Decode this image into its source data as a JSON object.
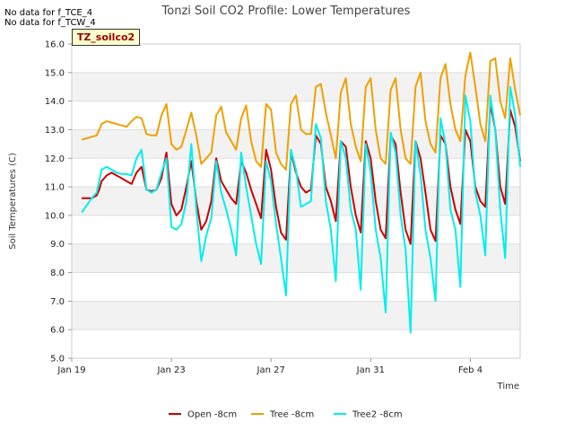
{
  "notes": [
    "No data for f_TCE_4",
    "No data for f_TCW_4"
  ],
  "badge": "TZ_soilco2",
  "chart_data": {
    "type": "line",
    "title": "Tonzi Soil CO2 Profile: Lower Temperatures",
    "xlabel": "Time",
    "ylabel": "Soil Temperatures (C)",
    "ylim": [
      5.0,
      16.0
    ],
    "yticks": [
      "5.0",
      "6.0",
      "7.0",
      "8.0",
      "9.0",
      "10.0",
      "11.0",
      "12.0",
      "13.0",
      "14.0",
      "15.0",
      "16.0"
    ],
    "xlim": [
      0,
      18
    ],
    "xticks": [
      {
        "x": 0,
        "label": "Jan 19"
      },
      {
        "x": 4,
        "label": "Jan 23"
      },
      {
        "x": 8,
        "label": "Jan 27"
      },
      {
        "x": 12,
        "label": "Jan 31"
      },
      {
        "x": 16,
        "label": "Feb 4"
      }
    ],
    "grid": true,
    "legend_position": "bottom",
    "series": [
      {
        "name": "Open -8cm",
        "color": "#cc0000",
        "x": [
          0.4,
          0.8,
          1.0,
          1.1,
          1.2,
          1.4,
          1.6,
          1.8,
          2.0,
          2.2,
          2.4,
          2.6,
          2.8,
          3.0,
          3.2,
          3.4,
          3.6,
          3.8,
          4.0,
          4.2,
          4.4,
          4.6,
          4.8,
          5.0,
          5.2,
          5.4,
          5.6,
          5.8,
          6.0,
          6.2,
          6.4,
          6.6,
          6.8,
          7.0,
          7.2,
          7.4,
          7.6,
          7.8,
          8.0,
          8.2,
          8.4,
          8.6,
          8.8,
          9.0,
          9.2,
          9.4,
          9.6,
          9.8,
          10.0,
          10.2,
          10.4,
          10.6,
          10.8,
          11.0,
          11.2,
          11.4,
          11.6,
          11.8,
          12.0,
          12.2,
          12.4,
          12.6,
          12.8,
          13.0,
          13.2,
          13.4,
          13.6,
          13.8,
          14.0,
          14.2,
          14.4,
          14.6,
          14.8,
          15.0,
          15.2,
          15.4,
          15.6,
          15.8,
          16.0,
          16.2,
          16.4,
          16.6,
          16.8,
          17.0,
          17.2,
          17.4,
          17.6,
          17.8,
          18.0
        ],
        "y": [
          10.6,
          10.6,
          10.7,
          10.9,
          11.2,
          11.4,
          11.5,
          11.4,
          11.3,
          11.2,
          11.1,
          11.5,
          11.7,
          10.9,
          10.85,
          10.9,
          11.3,
          12.2,
          10.4,
          10.0,
          10.2,
          11.0,
          11.9,
          10.5,
          9.5,
          9.8,
          10.5,
          12.0,
          11.2,
          10.9,
          10.6,
          10.4,
          11.9,
          11.5,
          10.9,
          10.4,
          9.9,
          12.3,
          11.6,
          10.3,
          9.4,
          9.15,
          12.2,
          11.5,
          11.0,
          10.8,
          10.9,
          12.8,
          12.5,
          11.0,
          10.5,
          9.8,
          12.6,
          12.4,
          11.0,
          10.0,
          9.4,
          12.6,
          12.0,
          10.5,
          9.5,
          9.2,
          12.8,
          12.5,
          10.8,
          9.5,
          9.0,
          12.6,
          12.0,
          10.8,
          9.5,
          9.1,
          12.8,
          12.5,
          11.0,
          10.2,
          9.7,
          13.0,
          12.6,
          11.0,
          10.5,
          10.3,
          13.9,
          13.0,
          11.0,
          10.4,
          13.7,
          13.1,
          11.9
        ]
      },
      {
        "name": "Tree -8cm",
        "color": "#f0a000",
        "x": [
          0.4,
          0.8,
          1.0,
          1.1,
          1.2,
          1.4,
          1.6,
          1.8,
          2.0,
          2.2,
          2.4,
          2.6,
          2.8,
          3.0,
          3.2,
          3.4,
          3.6,
          3.8,
          4.0,
          4.2,
          4.4,
          4.6,
          4.8,
          5.0,
          5.2,
          5.4,
          5.6,
          5.8,
          6.0,
          6.2,
          6.4,
          6.6,
          6.8,
          7.0,
          7.2,
          7.4,
          7.6,
          7.8,
          8.0,
          8.2,
          8.4,
          8.6,
          8.8,
          9.0,
          9.2,
          9.4,
          9.6,
          9.8,
          10.0,
          10.2,
          10.4,
          10.6,
          10.8,
          11.0,
          11.2,
          11.4,
          11.6,
          11.8,
          12.0,
          12.2,
          12.4,
          12.6,
          12.8,
          13.0,
          13.2,
          13.4,
          13.6,
          13.8,
          14.0,
          14.2,
          14.4,
          14.6,
          14.8,
          15.0,
          15.2,
          15.4,
          15.6,
          15.8,
          16.0,
          16.2,
          16.4,
          16.6,
          16.8,
          17.0,
          17.2,
          17.4,
          17.6,
          17.8,
          18.0
        ],
        "y": [
          12.65,
          12.75,
          12.8,
          13.0,
          13.2,
          13.3,
          13.25,
          13.2,
          13.15,
          13.1,
          13.3,
          13.45,
          13.4,
          12.85,
          12.8,
          12.8,
          13.5,
          13.9,
          12.5,
          12.3,
          12.4,
          13.0,
          13.6,
          12.8,
          11.8,
          12.0,
          12.2,
          13.5,
          13.8,
          12.9,
          12.6,
          12.3,
          13.4,
          13.85,
          12.6,
          11.9,
          11.7,
          13.9,
          13.7,
          12.2,
          11.8,
          11.6,
          13.9,
          14.2,
          13.0,
          12.85,
          12.85,
          14.5,
          14.6,
          13.6,
          12.8,
          12.0,
          14.3,
          14.8,
          13.2,
          12.4,
          11.9,
          14.5,
          14.8,
          13.0,
          12.0,
          11.8,
          14.4,
          14.8,
          13.0,
          12.0,
          11.8,
          14.5,
          15.0,
          13.3,
          12.5,
          12.2,
          14.8,
          15.3,
          13.9,
          13.0,
          12.6,
          14.9,
          15.7,
          14.5,
          13.2,
          12.6,
          15.4,
          15.5,
          14.0,
          13.4,
          15.5,
          14.4,
          13.5
        ]
      },
      {
        "name": "Tree2 -8cm",
        "color": "#00eeee",
        "x": [
          0.4,
          0.8,
          1.0,
          1.1,
          1.2,
          1.4,
          1.6,
          1.8,
          2.0,
          2.2,
          2.4,
          2.6,
          2.8,
          3.0,
          3.2,
          3.4,
          3.6,
          3.8,
          4.0,
          4.2,
          4.4,
          4.6,
          4.8,
          5.0,
          5.2,
          5.4,
          5.6,
          5.8,
          6.0,
          6.2,
          6.4,
          6.6,
          6.8,
          7.0,
          7.2,
          7.4,
          7.6,
          7.8,
          8.0,
          8.2,
          8.4,
          8.6,
          8.8,
          9.0,
          9.2,
          9.4,
          9.6,
          9.8,
          10.0,
          10.2,
          10.4,
          10.6,
          10.8,
          11.0,
          11.2,
          11.4,
          11.6,
          11.8,
          12.0,
          12.2,
          12.4,
          12.6,
          12.8,
          13.0,
          13.2,
          13.4,
          13.6,
          13.8,
          14.0,
          14.2,
          14.4,
          14.6,
          14.8,
          15.0,
          15.2,
          15.4,
          15.6,
          15.8,
          16.0,
          16.2,
          16.4,
          16.6,
          16.8,
          17.0,
          17.2,
          17.4,
          17.6,
          17.8,
          18.0
        ],
        "y": [
          10.1,
          10.6,
          10.8,
          11.2,
          11.6,
          11.7,
          11.6,
          11.5,
          11.45,
          11.45,
          11.4,
          12.0,
          12.3,
          10.9,
          10.8,
          10.9,
          11.5,
          12.0,
          9.6,
          9.5,
          9.7,
          10.5,
          12.5,
          10.2,
          8.4,
          9.3,
          9.9,
          11.9,
          10.8,
          10.2,
          9.5,
          8.6,
          12.2,
          11.0,
          10.0,
          9.0,
          8.3,
          11.9,
          11.2,
          9.7,
          8.5,
          7.2,
          12.3,
          11.6,
          10.3,
          10.4,
          10.5,
          13.2,
          12.7,
          10.5,
          9.5,
          7.7,
          12.6,
          12.0,
          10.2,
          9.5,
          7.4,
          12.5,
          11.5,
          9.5,
          8.5,
          6.6,
          12.9,
          12.2,
          10.0,
          8.8,
          5.9,
          12.6,
          11.4,
          9.5,
          8.5,
          7.0,
          13.4,
          12.5,
          10.2,
          9.5,
          7.5,
          14.2,
          13.3,
          10.8,
          10.0,
          8.6,
          14.2,
          13.0,
          10.2,
          8.5,
          14.5,
          13.5,
          11.7
        ]
      }
    ]
  }
}
